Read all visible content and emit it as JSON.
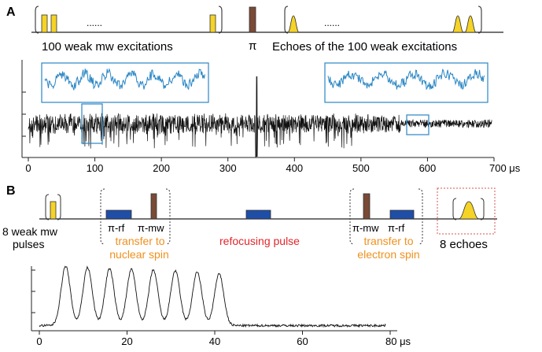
{
  "panel_a": {
    "letter": "A",
    "dots_left": "......",
    "dots_right": "......",
    "pi_label": "π",
    "excitations_label": "100 weak mw excitations",
    "echoes_label": "Echoes of the 100 weak excitations",
    "x_unit": "μs"
  },
  "panel_b": {
    "letter": "B",
    "weak_pulses_line1": "8 weak mw",
    "weak_pulses_line2": "pulses",
    "pi_rf_1": "π-rf",
    "pi_mw_1": "π-mw",
    "transfer_nuclear_line1": "transfer to",
    "transfer_nuclear_line2": "nuclear spin",
    "refocusing_label": "refocusing pulse",
    "pi_mw_2": "π-mw",
    "pi_rf_2": "π-rf",
    "transfer_electron_line1": "transfer to",
    "transfer_electron_line2": "electron spin",
    "echoes_label": "8 echoes",
    "x_unit": "μs"
  },
  "colors": {
    "mw_pulse": "#f5d327",
    "echo": "#f5d327",
    "pi_pulse": "#7a4a36",
    "rf_pulse": "#1f4ea6",
    "orange_text": "#f0901e",
    "red_text": "#e2262b",
    "inset_trace": "#2a86c4",
    "echo_box": "#d9534f"
  },
  "chart_data": [
    {
      "type": "line",
      "panel": "A",
      "x_unit": "μs",
      "xlim": [
        0,
        700
      ],
      "xticks": [
        0,
        100,
        200,
        300,
        400,
        500,
        600,
        700
      ],
      "xtick_labels": [
        "0",
        "100",
        "200",
        "300",
        "400",
        "500",
        "600",
        "700 μs"
      ],
      "features": {
        "refocus_spike_x": 343,
        "echo_region": [
          345,
          490
        ],
        "inset_left_window": [
          85,
          120
        ],
        "inset_right_window": [
          575,
          605
        ]
      }
    },
    {
      "type": "line",
      "panel": "B",
      "x_unit": "μs",
      "xlim": [
        0,
        80
      ],
      "xticks": [
        0,
        20,
        40,
        60,
        80
      ],
      "xtick_labels": [
        "0",
        "20",
        "40",
        "60",
        "80 μs"
      ],
      "echo_centers": [
        6,
        11,
        16,
        21,
        26,
        31,
        36,
        41
      ],
      "echo_amplitude": [
        0.92,
        0.9,
        0.88,
        0.87,
        0.86,
        0.85,
        0.83,
        0.8
      ],
      "baseline": 0.08
    }
  ]
}
